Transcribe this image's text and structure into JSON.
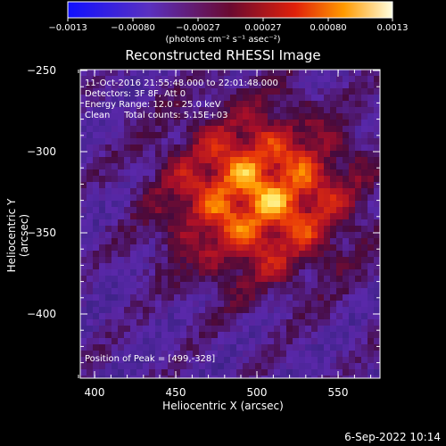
{
  "colorbar": {
    "ticks": [
      "−0.0013",
      "−0.00080",
      "−0.00027",
      "0.00027",
      "0.00080",
      "0.0013"
    ],
    "units": "(photons cm⁻² s⁻¹ asec⁻²)"
  },
  "title": "Reconstructed RHESSI Image",
  "info": {
    "time_range": "11-Oct-2016 21:55:48.000 to 22:01:48.000",
    "detectors": "Detectors: 3F 8F, Att 0",
    "energy": "Energy Range: 12.0 - 25.0 keV",
    "clean": "Clean     Total counts: 5.15E+03"
  },
  "peak": "Position of Peak = [499,-328]",
  "axes": {
    "xlabel": "Heliocentric X (arcsec)",
    "ylabel": "Heliocentric Y (arcsec)",
    "xticks": [
      "400",
      "450",
      "500",
      "550"
    ],
    "yticks": [
      "−250",
      "−300",
      "−350",
      "−400"
    ]
  },
  "date": "6-Sep-2022 10:14"
}
